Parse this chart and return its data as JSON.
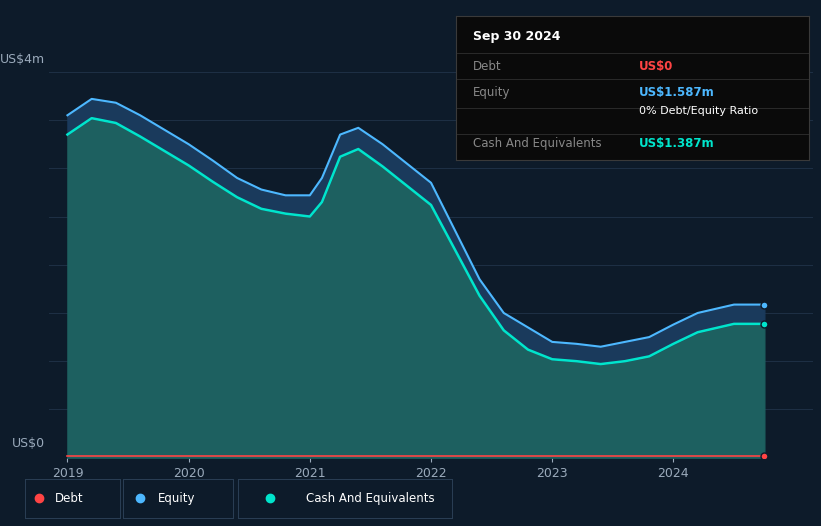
{
  "background_color": "#0d1b2a",
  "plot_bg_color": "#0d1b2a",
  "y_label_top": "US$4m",
  "y_label_bottom": "US$0",
  "x_ticks": [
    2019,
    2020,
    2021,
    2022,
    2023,
    2024
  ],
  "tooltip_title": "Sep 30 2024",
  "tooltip_debt_label": "Debt",
  "tooltip_debt_value": "US$0",
  "tooltip_equity_label": "Equity",
  "tooltip_equity_value": "US$1.587m",
  "tooltip_ratio": "0% Debt/Equity Ratio",
  "tooltip_cash_label": "Cash And Equivalents",
  "tooltip_cash_value": "US$1.387m",
  "debt_color": "#ff4444",
  "equity_color": "#4db8ff",
  "cash_color": "#00e5cc",
  "equity_fill_color": "#1a3a5c",
  "cash_fill_color": "#1d6060",
  "grid_color": "#1e3045",
  "tick_color": "#9aaabb",
  "time_points": [
    2019.0,
    2019.2,
    2019.4,
    2019.6,
    2019.8,
    2020.0,
    2020.2,
    2020.4,
    2020.6,
    2020.8,
    2021.0,
    2021.1,
    2021.25,
    2021.4,
    2021.6,
    2021.8,
    2022.0,
    2022.2,
    2022.4,
    2022.6,
    2022.8,
    2023.0,
    2023.2,
    2023.4,
    2023.6,
    2023.8,
    2024.0,
    2024.2,
    2024.5,
    2024.75
  ],
  "equity_values": [
    3.55,
    3.72,
    3.68,
    3.55,
    3.4,
    3.25,
    3.08,
    2.9,
    2.78,
    2.72,
    2.72,
    2.9,
    3.35,
    3.42,
    3.25,
    3.05,
    2.85,
    2.35,
    1.85,
    1.5,
    1.35,
    1.2,
    1.18,
    1.15,
    1.2,
    1.25,
    1.38,
    1.5,
    1.587,
    1.587
  ],
  "cash_values": [
    3.35,
    3.52,
    3.47,
    3.33,
    3.18,
    3.03,
    2.86,
    2.7,
    2.58,
    2.53,
    2.5,
    2.65,
    3.12,
    3.2,
    3.02,
    2.82,
    2.62,
    2.15,
    1.68,
    1.32,
    1.12,
    1.02,
    1.0,
    0.97,
    1.0,
    1.05,
    1.18,
    1.3,
    1.387,
    1.387
  ],
  "debt_values": [
    0.02,
    0.02,
    0.02,
    0.02,
    0.02,
    0.02,
    0.02,
    0.02,
    0.02,
    0.02,
    0.02,
    0.02,
    0.02,
    0.02,
    0.02,
    0.02,
    0.02,
    0.02,
    0.02,
    0.02,
    0.02,
    0.02,
    0.02,
    0.02,
    0.02,
    0.02,
    0.02,
    0.02,
    0.02,
    0.02
  ],
  "ylim": [
    0,
    4.2
  ],
  "xlim": [
    2018.85,
    2025.15
  ]
}
